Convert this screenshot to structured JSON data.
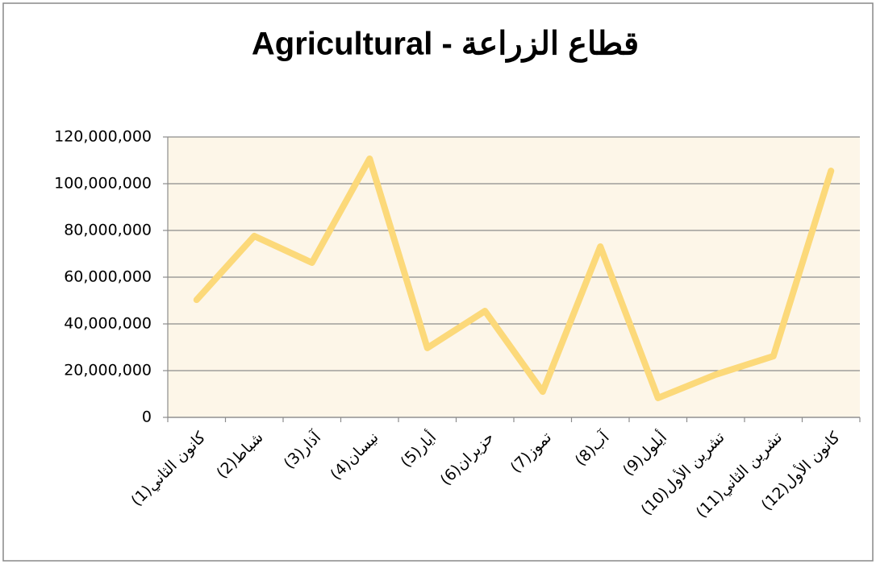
{
  "chart_data": {
    "type": "line",
    "title": "Agricultural - قطاع الزراعة",
    "categories": [
      "كانون الثاني(1)",
      "شباط(2)",
      "آذار(3)",
      "نيسان(4)",
      "أيار(5)",
      "حزيران(6)",
      "تموز(7)",
      "آب(8)",
      "أيلول(9)",
      "تشرين الأول(10)",
      "تشرين الثاني(11)",
      "كانون الأول(12)"
    ],
    "values": [
      50300000,
      77600000,
      66200000,
      110700000,
      29700000,
      45500000,
      11000000,
      73100000,
      8300000,
      18300000,
      26200000,
      105500000
    ],
    "color": "#fcd97a",
    "ylim": [
      0,
      120000000
    ],
    "yticks": [
      0,
      {
        "value": 20000000,
        "label": "20,000,000"
      },
      {
        "value": 40000000,
        "label": "40,000,000"
      },
      {
        "value": 60000000,
        "label": "60,000,000"
      },
      {
        "value": 80000000,
        "label": "80,000,000"
      },
      {
        "value": 100000000,
        "label": "100,000,000"
      },
      {
        "value": 120000000,
        "label": "120,000,000"
      }
    ],
    "grid": true
  }
}
